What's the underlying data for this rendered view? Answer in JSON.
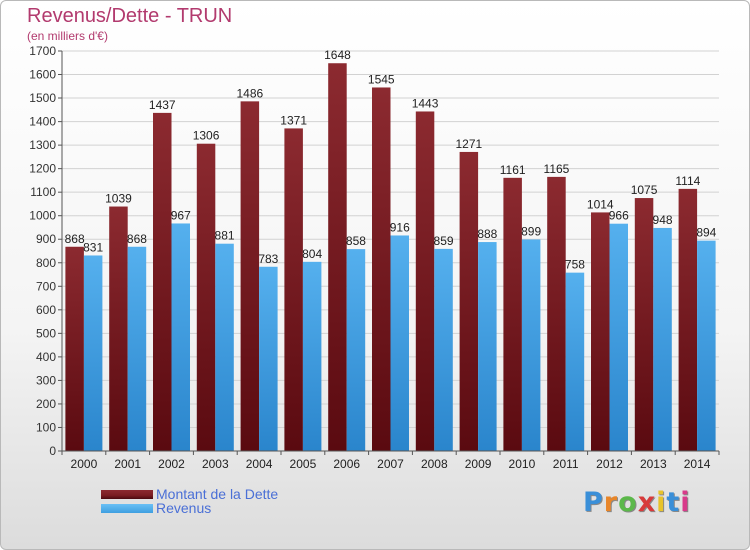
{
  "header": {
    "title": "Revenus/Dette - TRUN",
    "subtitle": "(en milliers d'€)"
  },
  "colors": {
    "dette": "#7a1d22",
    "revenus": "#3f9fe0",
    "title": "#b23a6e",
    "legend_text": "#4a6fd6"
  },
  "legend": {
    "items": [
      {
        "label": "Montant de la Dette",
        "color": "#7a1d22"
      },
      {
        "label": "Revenus",
        "color": "#3f9fe0"
      }
    ]
  },
  "logo": {
    "text": "Proxiti",
    "letter_colors": [
      "#3a8fd8",
      "#e8862a",
      "#5bb84a",
      "#d83a3a",
      "#e8c32a",
      "#3a8fd8",
      "#d83a8a"
    ]
  },
  "chart_data": {
    "type": "bar",
    "categories": [
      "2000",
      "2001",
      "2002",
      "2003",
      "2004",
      "2005",
      "2006",
      "2007",
      "2008",
      "2009",
      "2010",
      "2011",
      "2012",
      "2013",
      "2014"
    ],
    "series": [
      {
        "name": "Montant de la Dette",
        "values": [
          868,
          1039,
          1437,
          1306,
          1486,
          1371,
          1648,
          1545,
          1443,
          1271,
          1161,
          1165,
          1014,
          1075,
          1114
        ]
      },
      {
        "name": "Revenus",
        "values": [
          831,
          868,
          967,
          881,
          783,
          804,
          858,
          916,
          859,
          888,
          899,
          758,
          966,
          948,
          894
        ]
      }
    ],
    "ylim": [
      0,
      1700
    ],
    "ytick_step": 100,
    "title": "Revenus/Dette - TRUN",
    "ylabel": "(en milliers d'€)",
    "xlabel": "",
    "grid": true,
    "legend_position": "bottom-left"
  }
}
